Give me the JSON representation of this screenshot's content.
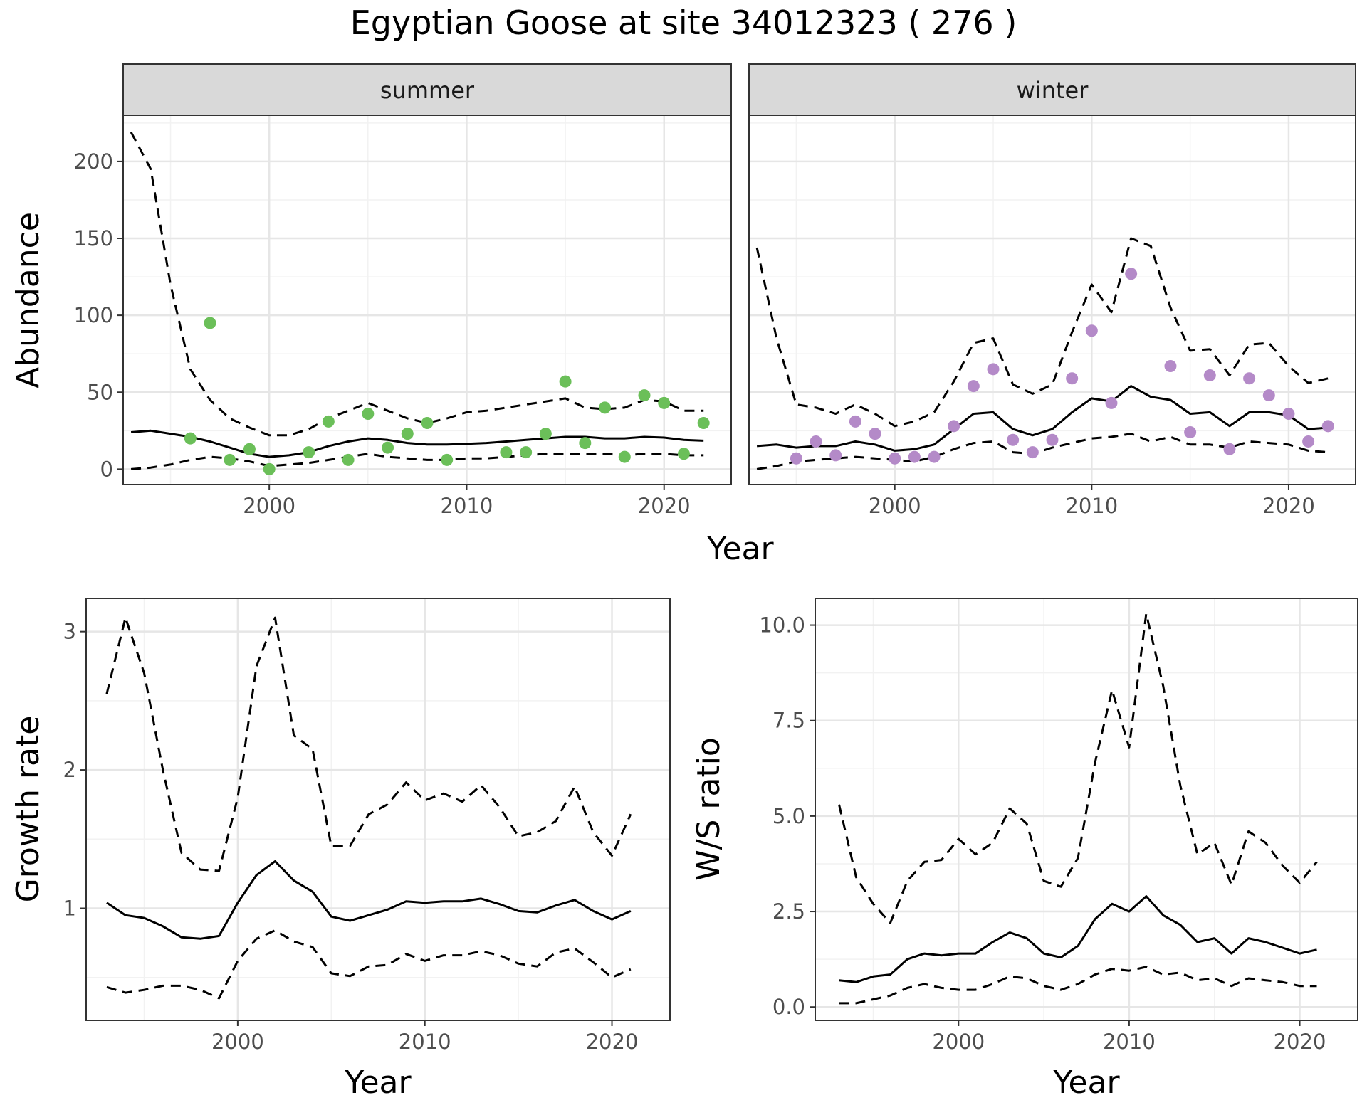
{
  "title": "Egyptian Goose at site 34012323 ( 276 )",
  "colors": {
    "summer_points": "#6bbf59",
    "winter_points": "#b48ac8",
    "line": "#000000",
    "grid_major": "#e6e6e6",
    "grid_minor": "#f2f2f2",
    "strip_fill": "#d9d9d9"
  },
  "chart_data": [
    {
      "type": "line",
      "panel": "summer",
      "strip": "summer",
      "xlabel": "Year",
      "ylabel": "Abundance",
      "xlim": [
        1992.6,
        2023.4
      ],
      "ylim": [
        -10,
        230
      ],
      "xticks": [
        2000,
        2010,
        2020
      ],
      "yticks": [
        0,
        50,
        100,
        150,
        200
      ],
      "grid": true,
      "x": [
        1993,
        1994,
        1995,
        1996,
        1997,
        1998,
        1999,
        2000,
        2001,
        2002,
        2003,
        2004,
        2005,
        2006,
        2007,
        2008,
        2009,
        2010,
        2011,
        2012,
        2013,
        2014,
        2015,
        2016,
        2017,
        2018,
        2019,
        2020,
        2021,
        2022
      ],
      "series": [
        {
          "role": "upper",
          "style": "dashed",
          "values": [
            219,
            195,
            120,
            65,
            45,
            33,
            27,
            22,
            22,
            26,
            33,
            38,
            43,
            38,
            33,
            30,
            33,
            37,
            38,
            40,
            42,
            44,
            46,
            40,
            39,
            40,
            45,
            44,
            38,
            38
          ]
        },
        {
          "role": "estimate",
          "style": "solid",
          "values": [
            24,
            25,
            23,
            21,
            18,
            14,
            10,
            8,
            9,
            11,
            15,
            18,
            20,
            19,
            17,
            16,
            16,
            16.5,
            17,
            18,
            19,
            20,
            21,
            21,
            20,
            20,
            21,
            20.5,
            19,
            18.5
          ]
        },
        {
          "role": "lower",
          "style": "dashed",
          "values": [
            0,
            1,
            3,
            6,
            8,
            7,
            5,
            2,
            3,
            4,
            6,
            8,
            10,
            8,
            7,
            6,
            6,
            7,
            7,
            8,
            9,
            10,
            10,
            10,
            10,
            9,
            10,
            10,
            9,
            9
          ]
        }
      ],
      "points": {
        "x": [
          1996,
          1997,
          1998,
          1999,
          2000,
          2002,
          2003,
          2004,
          2005,
          2006,
          2007,
          2008,
          2009,
          2012,
          2013,
          2014,
          2015,
          2016,
          2017,
          2018,
          2019,
          2020,
          2021,
          2022
        ],
        "y": [
          20,
          95,
          6,
          13,
          0,
          11,
          31,
          6,
          36,
          14,
          23,
          30,
          6,
          11,
          11,
          23,
          57,
          17,
          40,
          8,
          48,
          43,
          10,
          30
        ]
      }
    },
    {
      "type": "line",
      "panel": "winter",
      "strip": "winter",
      "xlim": [
        1992.6,
        2023.4
      ],
      "ylim": [
        -10,
        230
      ],
      "xticks": [
        2000,
        2010,
        2020
      ],
      "grid": true,
      "x": [
        1993,
        1994,
        1995,
        1996,
        1997,
        1998,
        1999,
        2000,
        2001,
        2002,
        2003,
        2004,
        2005,
        2006,
        2007,
        2008,
        2009,
        2010,
        2011,
        2012,
        2013,
        2014,
        2015,
        2016,
        2017,
        2018,
        2019,
        2020,
        2021,
        2022
      ],
      "series": [
        {
          "role": "upper",
          "style": "dashed",
          "values": [
            144,
            85,
            42,
            40,
            36,
            42,
            36,
            28,
            31,
            37,
            57,
            82,
            85,
            55,
            49,
            55,
            89,
            120,
            102,
            150,
            145,
            105,
            77,
            78,
            61,
            81,
            82,
            67,
            56,
            59
          ]
        },
        {
          "role": "estimate",
          "style": "solid",
          "values": [
            15,
            16,
            14,
            15,
            15,
            18,
            16,
            12,
            13,
            16,
            26,
            36,
            37,
            26,
            22,
            26,
            37,
            46,
            44,
            54,
            47,
            45,
            36,
            37,
            28,
            37,
            37,
            35,
            26,
            27
          ]
        },
        {
          "role": "lower",
          "style": "dashed",
          "values": [
            0,
            2,
            5,
            6,
            7,
            8,
            7,
            6,
            5,
            8,
            13,
            17,
            18,
            11,
            10,
            14,
            17,
            20,
            21,
            23,
            18,
            21,
            16,
            16,
            14,
            18,
            17,
            16,
            12,
            11
          ]
        }
      ],
      "points": {
        "x": [
          1995,
          1996,
          1997,
          1998,
          1999,
          2000,
          2001,
          2002,
          2003,
          2004,
          2005,
          2006,
          2007,
          2008,
          2009,
          2010,
          2011,
          2012,
          2014,
          2015,
          2016,
          2017,
          2018,
          2019,
          2020,
          2021,
          2022
        ],
        "y": [
          7,
          18,
          9,
          31,
          23,
          7,
          8,
          8,
          28,
          54,
          65,
          19,
          11,
          19,
          59,
          90,
          43,
          127,
          67,
          24,
          61,
          13,
          59,
          48,
          36,
          18,
          28
        ]
      }
    },
    {
      "type": "line",
      "panel": "growth",
      "xlabel": "Year",
      "ylabel": "Growth rate",
      "xlim": [
        1991.9,
        2023.1
      ],
      "ylim": [
        0.19,
        3.24
      ],
      "xticks": [
        2000,
        2010,
        2020
      ],
      "yticks": [
        1,
        2,
        3
      ],
      "grid": true,
      "x": [
        1993,
        1994,
        1995,
        1996,
        1997,
        1998,
        1999,
        2000,
        2001,
        2002,
        2003,
        2004,
        2005,
        2006,
        2007,
        2008,
        2009,
        2010,
        2011,
        2012,
        2013,
        2014,
        2015,
        2016,
        2017,
        2018,
        2019,
        2020,
        2021
      ],
      "series": [
        {
          "role": "upper",
          "style": "dashed",
          "values": [
            2.55,
            3.1,
            2.7,
            2.0,
            1.4,
            1.28,
            1.27,
            1.8,
            2.75,
            3.1,
            2.25,
            2.15,
            1.45,
            1.45,
            1.68,
            1.75,
            1.91,
            1.78,
            1.83,
            1.77,
            1.89,
            1.73,
            1.52,
            1.55,
            1.63,
            1.88,
            1.55,
            1.38,
            1.68
          ]
        },
        {
          "role": "estimate",
          "style": "solid",
          "values": [
            1.04,
            0.95,
            0.93,
            0.87,
            0.79,
            0.78,
            0.8,
            1.04,
            1.24,
            1.34,
            1.2,
            1.12,
            0.94,
            0.91,
            0.95,
            0.99,
            1.05,
            1.04,
            1.05,
            1.05,
            1.07,
            1.03,
            0.98,
            0.97,
            1.02,
            1.06,
            0.98,
            0.92,
            0.98
          ]
        },
        {
          "role": "lower",
          "style": "dashed",
          "values": [
            0.43,
            0.39,
            0.41,
            0.44,
            0.44,
            0.41,
            0.35,
            0.62,
            0.78,
            0.84,
            0.76,
            0.72,
            0.53,
            0.51,
            0.58,
            0.59,
            0.67,
            0.62,
            0.66,
            0.66,
            0.69,
            0.66,
            0.6,
            0.58,
            0.68,
            0.71,
            0.61,
            0.5,
            0.56
          ]
        }
      ]
    },
    {
      "type": "line",
      "panel": "ws_ratio",
      "xlabel": "Year",
      "ylabel": "W/S ratio",
      "xlim": [
        1991.6,
        2023.4
      ],
      "ylim": [
        -0.35,
        10.7
      ],
      "xticks": [
        2000,
        2010,
        2020
      ],
      "yticks": [
        0.0,
        2.5,
        5.0,
        7.5,
        10.0
      ],
      "ytick_labels": [
        "0.0",
        "2.5",
        "5.0",
        "7.5",
        "10.0"
      ],
      "grid": true,
      "x": [
        1993,
        1994,
        1995,
        1996,
        1997,
        1998,
        1999,
        2000,
        2001,
        2002,
        2003,
        2004,
        2005,
        2006,
        2007,
        2008,
        2009,
        2010,
        2011,
        2012,
        2013,
        2014,
        2015,
        2016,
        2017,
        2018,
        2019,
        2020,
        2021
      ],
      "series": [
        {
          "role": "upper",
          "style": "dashed",
          "values": [
            5.3,
            3.4,
            2.7,
            2.2,
            3.3,
            3.8,
            3.85,
            4.4,
            4.0,
            4.3,
            5.2,
            4.8,
            3.3,
            3.15,
            3.9,
            6.4,
            8.3,
            6.8,
            10.3,
            8.4,
            5.8,
            4.0,
            4.3,
            3.2,
            4.6,
            4.3,
            3.7,
            3.25,
            3.8
          ]
        },
        {
          "role": "estimate",
          "style": "solid",
          "values": [
            0.7,
            0.65,
            0.8,
            0.85,
            1.25,
            1.4,
            1.35,
            1.4,
            1.4,
            1.7,
            1.95,
            1.8,
            1.4,
            1.3,
            1.6,
            2.3,
            2.7,
            2.5,
            2.9,
            2.4,
            2.15,
            1.7,
            1.8,
            1.4,
            1.8,
            1.7,
            1.55,
            1.4,
            1.5
          ]
        },
        {
          "role": "lower",
          "style": "dashed",
          "values": [
            0.1,
            0.1,
            0.2,
            0.3,
            0.5,
            0.6,
            0.5,
            0.45,
            0.45,
            0.6,
            0.8,
            0.75,
            0.55,
            0.45,
            0.6,
            0.85,
            1.0,
            0.95,
            1.05,
            0.85,
            0.9,
            0.7,
            0.75,
            0.55,
            0.75,
            0.7,
            0.65,
            0.55,
            0.55
          ]
        }
      ]
    }
  ]
}
